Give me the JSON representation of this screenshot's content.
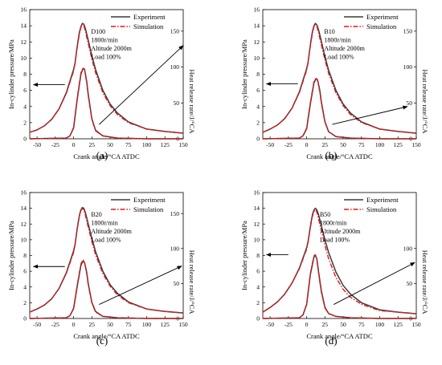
{
  "colors": {
    "experiment": "#3a3a3a",
    "simulation": "#e8161b",
    "axis": "#000000"
  },
  "chart_data": [
    {
      "type": "line",
      "panel_label": "(a)",
      "xlabel": "Crank angle/°CA ATDC",
      "ylabel": "In-cylinder pressure/MPa",
      "y2label": "Heat release rate/J/°CA",
      "xlim": [
        -60,
        150
      ],
      "ylim": [
        0,
        16
      ],
      "y2lim": [
        0,
        180
      ],
      "xticks": [
        "-50",
        "-25",
        "0",
        "25",
        "50",
        "75",
        "100",
        "125",
        "150"
      ],
      "yticks": [
        "0",
        "2",
        "4",
        "6",
        "8",
        "10",
        "12",
        "14",
        "16"
      ],
      "y2ticks": [
        "0",
        "50",
        "100",
        "150"
      ],
      "legend": [
        "Experiment",
        "Simulation"
      ],
      "annotation": [
        "D100",
        "1800r/min",
        "Altitude 2000m",
        "Load  100%"
      ],
      "series": [
        {
          "name": "Experiment",
          "kind": "pressure",
          "x": [
            -60,
            -50,
            -40,
            -30,
            -20,
            -10,
            0,
            2,
            4,
            6,
            8,
            10,
            12,
            14,
            16,
            18,
            20,
            25,
            30,
            40,
            50,
            60,
            75,
            100,
            125,
            150
          ],
          "y": [
            0.8,
            1.1,
            1.6,
            2.4,
            3.7,
            5.7,
            8.6,
            9.4,
            10.8,
            12.1,
            13.2,
            13.9,
            14.3,
            14.2,
            13.7,
            13.0,
            12.2,
            10.3,
            8.6,
            6.0,
            4.3,
            3.2,
            2.1,
            1.2,
            0.9,
            0.7
          ]
        },
        {
          "name": "Simulation",
          "kind": "pressure",
          "x": [
            -60,
            -50,
            -40,
            -30,
            -20,
            -10,
            0,
            2,
            4,
            6,
            8,
            10,
            12,
            14,
            16,
            18,
            20,
            25,
            30,
            40,
            50,
            60,
            75,
            100,
            125,
            150
          ],
          "y": [
            0.8,
            1.1,
            1.6,
            2.4,
            3.7,
            5.6,
            8.4,
            9.3,
            10.7,
            11.9,
            13.0,
            13.8,
            14.2,
            14.0,
            13.4,
            12.6,
            11.8,
            9.9,
            8.2,
            5.7,
            4.1,
            3.0,
            2.0,
            1.2,
            0.9,
            0.7
          ]
        },
        {
          "name": "Experiment",
          "kind": "heat_release",
          "x": [
            -60,
            -10,
            -5,
            0,
            5,
            10,
            13,
            15,
            18,
            20,
            25,
            30,
            40,
            60,
            100,
            150
          ],
          "y": [
            0,
            1,
            4,
            15,
            55,
            90,
            98,
            97,
            80,
            62,
            28,
            12,
            4,
            1,
            0,
            0
          ]
        },
        {
          "name": "Simulation",
          "kind": "heat_release",
          "x": [
            -60,
            -10,
            -5,
            0,
            5,
            10,
            13,
            15,
            18,
            20,
            25,
            30,
            40,
            60,
            100,
            150
          ],
          "y": [
            0,
            1,
            4,
            16,
            57,
            92,
            99,
            96,
            78,
            60,
            27,
            11,
            4,
            1,
            0,
            0
          ]
        }
      ],
      "arrows": [
        {
          "label": "pressure axis",
          "from": [
            -12,
            6.7
          ],
          "to": [
            -55,
            6.7
          ]
        },
        {
          "label": "heat release axis",
          "from": [
            35,
            20
          ],
          "to": [
            150,
            130
          ]
        }
      ]
    },
    {
      "type": "line",
      "panel_label": "(b)",
      "xlabel": "Crank angle/°CA ATDC",
      "ylabel": "In-cylinder pressure/MPa",
      "y2label": "Heat release rate/J/°CA",
      "xlim": [
        -60,
        150
      ],
      "ylim": [
        0,
        16
      ],
      "y2lim": [
        0,
        180
      ],
      "xticks": [
        "-50",
        "-25",
        "0",
        "25",
        "50",
        "75",
        "100",
        "125",
        "150"
      ],
      "yticks": [
        "0",
        "2",
        "4",
        "6",
        "8",
        "10",
        "12",
        "14",
        "16"
      ],
      "y2ticks": [
        "0",
        "50",
        "100",
        "150"
      ],
      "legend": [
        "Experiment",
        "Simulation"
      ],
      "annotation": [
        "B10",
        "1800r/min",
        "Altitude 2000m",
        "Load  100%"
      ],
      "series": [
        {
          "name": "Experiment",
          "kind": "pressure",
          "x": [
            -60,
            -50,
            -40,
            -30,
            -20,
            -10,
            0,
            2,
            4,
            6,
            8,
            10,
            12,
            14,
            16,
            18,
            20,
            25,
            30,
            40,
            50,
            60,
            75,
            100,
            125,
            150
          ],
          "y": [
            0.8,
            1.2,
            1.7,
            2.5,
            3.8,
            5.8,
            8.7,
            9.5,
            10.9,
            12.2,
            13.3,
            14.0,
            14.3,
            14.1,
            13.6,
            12.9,
            12.1,
            10.2,
            8.5,
            6.0,
            4.3,
            3.2,
            2.1,
            1.2,
            0.9,
            0.7
          ]
        },
        {
          "name": "Simulation",
          "kind": "pressure",
          "x": [
            -60,
            -50,
            -40,
            -30,
            -20,
            -10,
            0,
            2,
            4,
            6,
            8,
            10,
            12,
            14,
            16,
            18,
            20,
            25,
            30,
            40,
            50,
            60,
            75,
            100,
            125,
            150
          ],
          "y": [
            0.8,
            1.2,
            1.7,
            2.5,
            3.8,
            5.7,
            8.5,
            9.4,
            10.8,
            12.0,
            13.1,
            13.9,
            14.2,
            13.9,
            13.3,
            12.5,
            11.7,
            9.8,
            8.1,
            5.7,
            4.1,
            3.0,
            2.0,
            1.2,
            0.9,
            0.7
          ]
        },
        {
          "name": "Experiment",
          "kind": "heat_release",
          "x": [
            -60,
            -10,
            -5,
            0,
            5,
            10,
            13,
            15,
            18,
            20,
            25,
            30,
            40,
            60,
            100,
            150
          ],
          "y": [
            0,
            1,
            4,
            14,
            48,
            78,
            84,
            82,
            68,
            52,
            24,
            10,
            3,
            1,
            0,
            0
          ]
        },
        {
          "name": "Simulation",
          "kind": "heat_release",
          "x": [
            -60,
            -10,
            -5,
            0,
            5,
            10,
            13,
            15,
            18,
            20,
            25,
            30,
            40,
            60,
            100,
            150
          ],
          "y": [
            0,
            1,
            4,
            15,
            50,
            80,
            85,
            81,
            66,
            50,
            23,
            10,
            3,
            1,
            0,
            0
          ]
        }
      ],
      "arrows": [
        {
          "label": "pressure axis",
          "from": [
            -12,
            6.8
          ],
          "to": [
            -55,
            6.8
          ]
        },
        {
          "label": "heat release axis",
          "from": [
            35,
            20
          ],
          "to": [
            138,
            45
          ]
        }
      ]
    },
    {
      "type": "line",
      "panel_label": "(c)",
      "xlabel": "Crank angle/°CA ATDC",
      "ylabel": "In-cylinder pressure/MPa",
      "y2label": "Heat release rate/J/°CA",
      "xlim": [
        -60,
        150
      ],
      "ylim": [
        0,
        16
      ],
      "y2lim": [
        0,
        180
      ],
      "xticks": [
        "-50",
        "-25",
        "0",
        "25",
        "50",
        "75",
        "100",
        "125",
        "150"
      ],
      "yticks": [
        "0",
        "2",
        "4",
        "6",
        "8",
        "10",
        "12",
        "14",
        "16"
      ],
      "y2ticks": [
        "0",
        "50",
        "100",
        "150"
      ],
      "legend": [
        "Experiment",
        "Simulation"
      ],
      "annotation": [
        "B20",
        "1800r/min",
        "Altitude 2000m",
        "Load  100%"
      ],
      "series": [
        {
          "name": "Experiment",
          "kind": "pressure",
          "x": [
            -60,
            -50,
            -40,
            -30,
            -20,
            -10,
            0,
            2,
            4,
            6,
            8,
            10,
            12,
            14,
            16,
            18,
            20,
            25,
            30,
            40,
            50,
            60,
            75,
            100,
            125,
            150
          ],
          "y": [
            0.8,
            1.2,
            1.7,
            2.5,
            3.8,
            5.8,
            8.6,
            9.4,
            10.8,
            12.0,
            13.1,
            13.8,
            14.1,
            14.0,
            13.5,
            12.8,
            12.0,
            10.2,
            8.5,
            6.0,
            4.3,
            3.2,
            2.1,
            1.2,
            0.9,
            0.7
          ]
        },
        {
          "name": "Simulation",
          "kind": "pressure",
          "x": [
            -60,
            -50,
            -40,
            -30,
            -20,
            -10,
            0,
            2,
            4,
            6,
            8,
            10,
            12,
            14,
            16,
            18,
            20,
            25,
            30,
            40,
            50,
            60,
            75,
            100,
            125,
            150
          ],
          "y": [
            0.8,
            1.2,
            1.7,
            2.5,
            3.8,
            5.7,
            8.4,
            9.3,
            10.7,
            11.9,
            13.0,
            13.7,
            14.0,
            13.8,
            13.2,
            12.4,
            11.6,
            9.8,
            8.1,
            5.7,
            4.1,
            3.0,
            2.0,
            1.2,
            0.9,
            0.7
          ]
        },
        {
          "name": "Experiment",
          "kind": "heat_release",
          "x": [
            -60,
            -10,
            -5,
            0,
            5,
            10,
            13,
            15,
            18,
            20,
            25,
            30,
            40,
            60,
            100,
            150
          ],
          "y": [
            0,
            1,
            4,
            14,
            46,
            76,
            82,
            80,
            66,
            50,
            23,
            10,
            3,
            1,
            0,
            0
          ]
        },
        {
          "name": "Simulation",
          "kind": "heat_release",
          "x": [
            -60,
            -10,
            -5,
            0,
            5,
            10,
            13,
            15,
            18,
            20,
            25,
            30,
            40,
            60,
            100,
            150
          ],
          "y": [
            0,
            1,
            4,
            15,
            48,
            78,
            84,
            80,
            64,
            48,
            22,
            9,
            3,
            1,
            0,
            0
          ]
        }
      ],
      "arrows": [
        {
          "label": "pressure axis",
          "from": [
            -12,
            6.6
          ],
          "to": [
            -55,
            6.6
          ]
        },
        {
          "label": "heat release axis",
          "from": [
            35,
            20
          ],
          "to": [
            148,
            75
          ]
        }
      ]
    },
    {
      "type": "line",
      "panel_label": "(d)",
      "xlabel": "Crank angle/°CA ATDC",
      "ylabel": "In-cylinder pressure/MPa",
      "y2label": "Heat release rate/J/°CA",
      "xlim": [
        -60,
        150
      ],
      "ylim": [
        0,
        16
      ],
      "y2lim": [
        0,
        180
      ],
      "xticks": [
        "-50",
        "-25",
        "0",
        "25",
        "50",
        "75",
        "100",
        "125",
        "150"
      ],
      "yticks": [
        "0",
        "2",
        "4",
        "6",
        "8",
        "10",
        "12",
        "14",
        "16"
      ],
      "y2ticks": [
        "0",
        "50",
        "100"
      ],
      "legend": [
        "Experiment",
        "Simulation"
      ],
      "annotation": [
        "B50",
        "1800r/min",
        "Altitude 2000m",
        "Load  100%"
      ],
      "series": [
        {
          "name": "Experiment",
          "kind": "pressure",
          "x": [
            -60,
            -50,
            -40,
            -30,
            -20,
            -10,
            0,
            2,
            4,
            6,
            8,
            10,
            12,
            14,
            16,
            18,
            20,
            25,
            30,
            40,
            50,
            60,
            75,
            100,
            125,
            150
          ],
          "y": [
            0.8,
            1.4,
            2.1,
            3.1,
            4.5,
            6.4,
            9.0,
            9.8,
            11.0,
            12.2,
            13.2,
            13.8,
            14.0,
            13.8,
            13.3,
            12.6,
            11.8,
            10.0,
            8.4,
            5.9,
            4.2,
            3.1,
            2.0,
            1.1,
            0.8,
            0.6
          ]
        },
        {
          "name": "Simulation",
          "kind": "pressure",
          "x": [
            -60,
            -50,
            -40,
            -30,
            -20,
            -10,
            0,
            2,
            4,
            6,
            8,
            10,
            12,
            14,
            16,
            18,
            20,
            25,
            30,
            40,
            50,
            60,
            75,
            100,
            125,
            150
          ],
          "y": [
            0.8,
            1.4,
            2.1,
            3.1,
            4.5,
            6.3,
            8.8,
            9.7,
            10.9,
            12.0,
            13.0,
            13.6,
            13.8,
            13.5,
            12.8,
            12.0,
            11.2,
            9.3,
            7.6,
            5.2,
            3.7,
            2.7,
            1.8,
            1.0,
            0.8,
            0.6
          ]
        },
        {
          "name": "Experiment",
          "kind": "heat_release",
          "x": [
            -60,
            -10,
            -5,
            0,
            5,
            10,
            12,
            14,
            17,
            20,
            25,
            30,
            40,
            60,
            100,
            150
          ],
          "y": [
            0,
            1,
            5,
            20,
            62,
            88,
            90,
            85,
            62,
            40,
            16,
            7,
            3,
            1,
            0,
            0
          ]
        },
        {
          "name": "Simulation",
          "kind": "heat_release",
          "x": [
            -60,
            -10,
            -5,
            0,
            5,
            10,
            12,
            14,
            17,
            20,
            25,
            30,
            40,
            60,
            100,
            150
          ],
          "y": [
            0,
            1,
            5,
            21,
            64,
            90,
            91,
            84,
            60,
            38,
            15,
            7,
            3,
            1,
            0,
            0
          ]
        }
      ],
      "arrows": [
        {
          "label": "pressure axis",
          "from": [
            -25,
            8.1
          ],
          "to": [
            -55,
            8.1
          ]
        },
        {
          "label": "heat release axis",
          "from": [
            37,
            20
          ],
          "to": [
            148,
            80
          ]
        }
      ]
    }
  ]
}
